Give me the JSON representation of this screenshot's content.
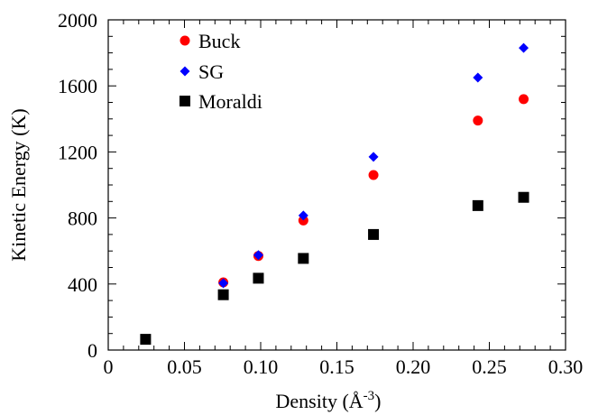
{
  "chart_data": {
    "type": "scatter",
    "xlabel": "Density (Å",
    "xlabel_sup": "-3",
    "xlabel_close": ")",
    "ylabel": "Kinetic Energy (K)",
    "xlim": [
      0,
      0.3
    ],
    "ylim": [
      0,
      2000
    ],
    "xticks": [
      0,
      0.05,
      0.1,
      0.15,
      0.2,
      0.25,
      0.3
    ],
    "xtick_labels": [
      "0",
      "0.05",
      "0.10",
      "0.15",
      "0.20",
      "0.25",
      "0.30"
    ],
    "yticks": [
      0,
      400,
      800,
      1200,
      1600,
      2000
    ],
    "ytick_labels": [
      "0",
      "400",
      "800",
      "1200",
      "1600",
      "2000"
    ],
    "grid": false,
    "legend_position": "top-left",
    "series": [
      {
        "name": "Buck",
        "marker": "circle",
        "color": "#ff0000",
        "x": [
          0.0755,
          0.0985,
          0.128,
          0.174,
          0.2425,
          0.2725
        ],
        "y": [
          410,
          570,
          785,
          1060,
          1390,
          1520
        ]
      },
      {
        "name": "SG",
        "marker": "diamond",
        "color": "#0000ff",
        "x": [
          0.0755,
          0.0985,
          0.128,
          0.174,
          0.2425,
          0.2725
        ],
        "y": [
          405,
          575,
          815,
          1170,
          1650,
          1830
        ]
      },
      {
        "name": "Moraldi",
        "marker": "square",
        "color": "#000000",
        "x": [
          0.0245,
          0.0755,
          0.0985,
          0.128,
          0.174,
          0.2425,
          0.2725
        ],
        "y": [
          65,
          335,
          435,
          555,
          700,
          875,
          925
        ]
      }
    ]
  }
}
